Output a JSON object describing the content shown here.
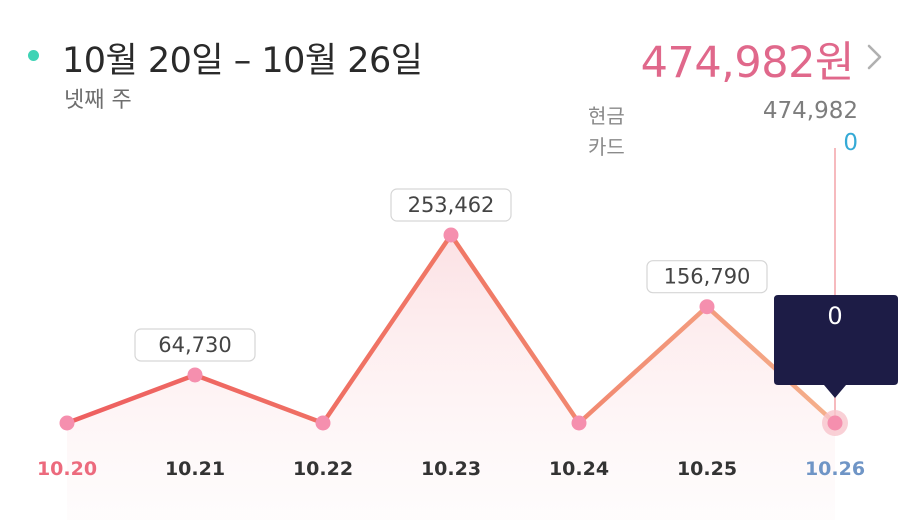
{
  "header": {
    "period": "10월 20일 – 10월 26일",
    "week": "넷째 주",
    "total": "474,982원",
    "accent": "#e0688b",
    "marker_color": "#3fd3b5",
    "more_icon": "chevron-right-icon"
  },
  "breakdown": {
    "cash_label": "현금",
    "cash_value": "474,982",
    "card_label": "카드",
    "card_value": "0",
    "card_color": "#35aad6"
  },
  "tooltip": {
    "value": "0"
  },
  "chart_data": {
    "type": "line",
    "categories": [
      "10.20",
      "10.21",
      "10.22",
      "10.23",
      "10.24",
      "10.25",
      "10.26"
    ],
    "values": [
      0,
      64730,
      0,
      253462,
      0,
      156790,
      0
    ],
    "data_labels": [
      "",
      "64,730",
      "",
      "253,462",
      "",
      "156,790",
      ""
    ],
    "selected_index": 6,
    "ylim": [
      0,
      253462
    ],
    "grid": false
  }
}
